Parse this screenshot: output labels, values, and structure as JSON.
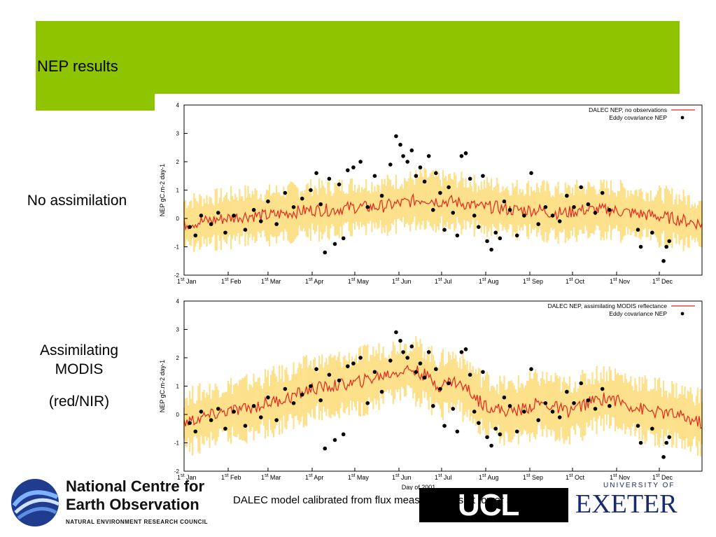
{
  "slide": {
    "title": "NEP results",
    "row_labels": {
      "top": "No assimilation",
      "bottom_line1": "Assimilating",
      "bottom_line2": "MODIS",
      "bottom_line3": "(red/NIR)"
    },
    "caption": "DALEC model calibrated from flux measurements at tower site 1"
  },
  "logos": {
    "nceo_line1": "National Centre for",
    "nceo_line2": "Earth Observation",
    "nceo_line3": "NATURAL ENVIRONMENT RESEARCH COUNCIL",
    "ucl": "UCL",
    "exeter_top": "UNIVERSITY OF",
    "exeter_main": "EXETER"
  },
  "colors": {
    "header": "#8fc400",
    "model_line": "#e8231b",
    "uncertainty": "#fde08a",
    "obs": "#000000"
  },
  "chart_data": [
    {
      "type": "line",
      "ylabel": "NEP gC.m-2 day-1",
      "xlabel": "",
      "ylim": [
        -2,
        4
      ],
      "xlim": [
        1,
        365
      ],
      "yticks": [
        -2,
        -1,
        0,
        1,
        2,
        3,
        4
      ],
      "xticks": [
        {
          "day": 1,
          "sup": "st",
          "label": "Jan"
        },
        {
          "day": 32,
          "sup": "st",
          "label": "Feb"
        },
        {
          "day": 60,
          "sup": "st",
          "label": "Mar"
        },
        {
          "day": 91,
          "sup": "st",
          "label": "Apr"
        },
        {
          "day": 121,
          "sup": "st",
          "label": "May"
        },
        {
          "day": 152,
          "sup": "st",
          "label": "Jun"
        },
        {
          "day": 182,
          "sup": "st",
          "label": "Jul"
        },
        {
          "day": 213,
          "sup": "st",
          "label": "Aug"
        },
        {
          "day": 244,
          "sup": "st",
          "label": "Sep"
        },
        {
          "day": 274,
          "sup": "st",
          "label": "Oct"
        },
        {
          "day": 305,
          "sup": "st",
          "label": "Nov"
        },
        {
          "day": 335,
          "sup": "st",
          "label": "Dec"
        }
      ],
      "legend_position": "top-right",
      "series": [
        {
          "name": "DALEC NEP, no observations",
          "kind": "line",
          "x": [
            1,
            15,
            30,
            45,
            60,
            75,
            90,
            105,
            120,
            135,
            150,
            160,
            170,
            180,
            190,
            200,
            210,
            220,
            230,
            240,
            250,
            260,
            270,
            280,
            290,
            300,
            315,
            330,
            345,
            365
          ],
          "y": [
            -0.2,
            -0.1,
            0.0,
            0.1,
            0.1,
            0.2,
            0.3,
            0.3,
            0.4,
            0.4,
            0.5,
            0.6,
            0.7,
            0.6,
            0.6,
            0.5,
            0.4,
            0.4,
            0.3,
            0.3,
            0.3,
            0.2,
            0.2,
            0.3,
            0.3,
            0.3,
            0.2,
            0.1,
            0.0,
            -0.2
          ],
          "band": 0.8
        },
        {
          "name": "Eddy covariance NEP",
          "kind": "points",
          "x": [
            5,
            9,
            13,
            20,
            25,
            30,
            36,
            44,
            50,
            55,
            60,
            66,
            72,
            78,
            84,
            90,
            94,
            97,
            100,
            103,
            107,
            110,
            113,
            116,
            120,
            125,
            130,
            135,
            140,
            146,
            150,
            153,
            155,
            158,
            161,
            164,
            167,
            170,
            173,
            176,
            178,
            181,
            184,
            187,
            190,
            193,
            196,
            199,
            202,
            205,
            208,
            211,
            214,
            217,
            220,
            223,
            226,
            230,
            235,
            240,
            245,
            250,
            255,
            260,
            265,
            270,
            275,
            280,
            285,
            290,
            295,
            300,
            320,
            322,
            330,
            338,
            340,
            342
          ],
          "y": [
            -0.3,
            -0.6,
            0.1,
            -0.2,
            0.2,
            -0.5,
            0.1,
            -0.4,
            0.3,
            -0.1,
            0.6,
            -0.2,
            0.9,
            0.4,
            0.7,
            1.0,
            1.6,
            0.5,
            -1.2,
            1.4,
            -0.9,
            1.2,
            -0.7,
            1.7,
            1.8,
            2.0,
            0.4,
            1.5,
            0.8,
            1.9,
            2.9,
            2.6,
            2.2,
            2.0,
            2.4,
            1.5,
            1.8,
            1.3,
            2.2,
            0.3,
            1.6,
            0.9,
            -0.4,
            1.1,
            0.2,
            -0.6,
            2.2,
            2.3,
            1.4,
            0.1,
            -0.3,
            1.5,
            -0.8,
            -1.1,
            -0.5,
            -0.7,
            0.6,
            0.3,
            -0.6,
            0.1,
            1.6,
            -0.2,
            0.4,
            0.1,
            -0.1,
            0.8,
            0.4,
            1.1,
            0.5,
            0.2,
            0.9,
            0.3,
            -0.4,
            -1.0,
            -0.5,
            -1.5,
            -1.0,
            -0.8
          ]
        }
      ]
    },
    {
      "type": "line",
      "ylabel": "NEP gC.m-2 day-1",
      "xlabel": "Day of 2001",
      "ylim": [
        -2,
        4
      ],
      "xlim": [
        1,
        365
      ],
      "yticks": [
        -2,
        -1,
        0,
        1,
        2,
        3,
        4
      ],
      "xticks": [
        {
          "day": 1,
          "sup": "st",
          "label": "Jan"
        },
        {
          "day": 32,
          "sup": "st",
          "label": "Feb"
        },
        {
          "day": 60,
          "sup": "st",
          "label": "Mar"
        },
        {
          "day": 91,
          "sup": "st",
          "label": "Apr"
        },
        {
          "day": 121,
          "sup": "st",
          "label": "May"
        },
        {
          "day": 152,
          "sup": "st",
          "label": "Jun"
        },
        {
          "day": 182,
          "sup": "st",
          "label": "Jul"
        },
        {
          "day": 213,
          "sup": "st",
          "label": "Aug"
        },
        {
          "day": 244,
          "sup": "st",
          "label": "Sep"
        },
        {
          "day": 274,
          "sup": "st",
          "label": "Oct"
        },
        {
          "day": 305,
          "sup": "st",
          "label": "Nov"
        },
        {
          "day": 335,
          "sup": "st",
          "label": "Dec"
        }
      ],
      "legend_position": "top-right",
      "series": [
        {
          "name": "DALEC NEP, assimilating MODIS reflectance",
          "kind": "line",
          "x": [
            1,
            15,
            30,
            45,
            60,
            75,
            90,
            105,
            120,
            135,
            150,
            160,
            170,
            180,
            190,
            200,
            210,
            220,
            230,
            240,
            250,
            260,
            270,
            280,
            290,
            300,
            315,
            330,
            345,
            365
          ],
          "y": [
            -0.3,
            -0.1,
            0.1,
            0.2,
            0.4,
            0.6,
            0.9,
            1.0,
            1.1,
            1.3,
            1.5,
            1.6,
            1.4,
            1.0,
            1.2,
            0.9,
            0.4,
            0.2,
            0.1,
            0.2,
            0.4,
            0.3,
            0.1,
            0.3,
            0.5,
            0.6,
            0.3,
            0.1,
            0.0,
            -0.3
          ],
          "band": 0.9
        },
        {
          "name": "Eddy covariance NEP",
          "kind": "points",
          "x": [
            5,
            9,
            13,
            20,
            25,
            30,
            36,
            44,
            50,
            55,
            60,
            66,
            72,
            78,
            84,
            90,
            94,
            97,
            100,
            103,
            107,
            110,
            113,
            116,
            120,
            125,
            130,
            135,
            140,
            146,
            150,
            153,
            155,
            158,
            161,
            164,
            167,
            170,
            173,
            176,
            178,
            181,
            184,
            187,
            190,
            193,
            196,
            199,
            202,
            205,
            208,
            211,
            214,
            217,
            220,
            223,
            226,
            230,
            235,
            240,
            245,
            250,
            255,
            260,
            265,
            270,
            275,
            280,
            285,
            290,
            295,
            300,
            320,
            322,
            330,
            338,
            340,
            342
          ],
          "y": [
            -0.3,
            -0.6,
            0.1,
            -0.2,
            0.2,
            -0.5,
            0.1,
            -0.4,
            0.3,
            -0.1,
            0.6,
            -0.2,
            0.9,
            0.4,
            0.7,
            1.0,
            1.6,
            0.5,
            -1.2,
            1.4,
            -0.9,
            1.2,
            -0.7,
            1.7,
            1.8,
            2.0,
            0.4,
            1.5,
            0.8,
            1.9,
            2.9,
            2.6,
            2.2,
            2.0,
            2.4,
            1.5,
            1.8,
            1.3,
            2.2,
            0.3,
            1.6,
            0.9,
            -0.4,
            1.1,
            0.2,
            -0.6,
            2.2,
            2.3,
            1.4,
            0.1,
            -0.3,
            1.5,
            -0.8,
            -1.1,
            -0.5,
            -0.7,
            0.6,
            0.3,
            -0.6,
            0.1,
            1.6,
            -0.2,
            0.4,
            0.1,
            -0.1,
            0.8,
            0.4,
            1.1,
            0.5,
            0.2,
            0.9,
            0.3,
            -0.4,
            -1.0,
            -0.5,
            -1.5,
            -1.0,
            -0.8
          ]
        }
      ]
    }
  ]
}
